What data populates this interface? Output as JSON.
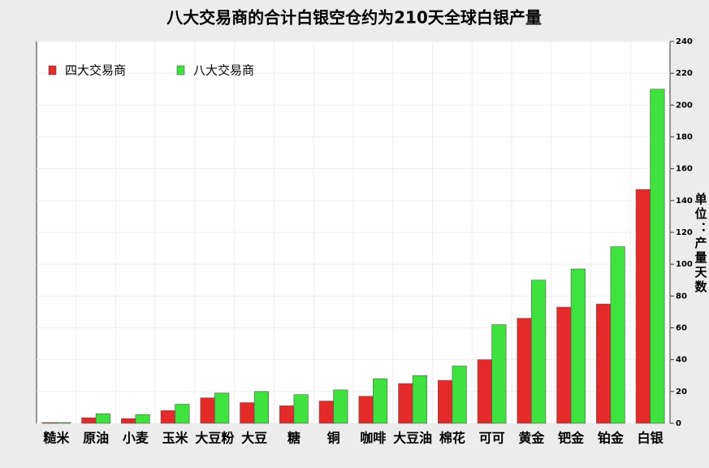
{
  "chart_data": {
    "type": "bar",
    "title": "八大交易商的合计白银空仓约为210天全球白银产量",
    "y_label": "单位：产量天数",
    "categories": [
      "糙米",
      "原油",
      "小麦",
      "玉米",
      "大豆粉",
      "大豆",
      "糖",
      "铜",
      "咖啡",
      "大豆油",
      "棉花",
      "可可",
      "黄金",
      "钯金",
      "铂金",
      "白银"
    ],
    "series": [
      {
        "name": "四大交易商",
        "color": "#e52a2a",
        "values": [
          0.5,
          3.5,
          3,
          8,
          16,
          13,
          11,
          14,
          17,
          25,
          27,
          40,
          66,
          73,
          75,
          147
        ]
      },
      {
        "name": "八大交易商",
        "color": "#3ee23e",
        "values": [
          0.5,
          6,
          5.5,
          12,
          19,
          20,
          18,
          21,
          28,
          30,
          36,
          62,
          90,
          97,
          111,
          210
        ]
      }
    ],
    "ylim": [
      0,
      240
    ],
    "yticks": [
      0,
      20,
      40,
      60,
      80,
      100,
      120,
      140,
      160,
      180,
      200,
      220,
      240
    ],
    "grid": true,
    "legend": "top-left",
    "y_axis_side": "right"
  }
}
